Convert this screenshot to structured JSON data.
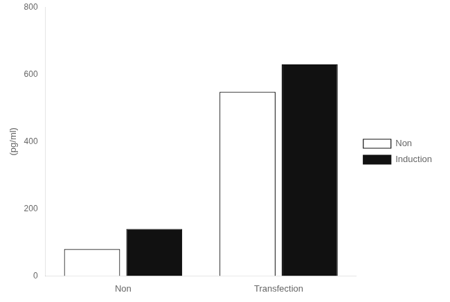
{
  "chart_data": {
    "type": "bar",
    "ylabel": "(pg/ml)",
    "categories": [
      "Non",
      "Transfection"
    ],
    "series": [
      {
        "name": "Non",
        "color": "#ffffff",
        "values": [
          80,
          548
        ]
      },
      {
        "name": "Induction",
        "color": "#111111",
        "values": [
          140,
          630
        ]
      }
    ],
    "ylim": [
      0,
      800
    ],
    "yticks": [
      0,
      200,
      400,
      600,
      800
    ],
    "grid": false,
    "legend": "right"
  }
}
